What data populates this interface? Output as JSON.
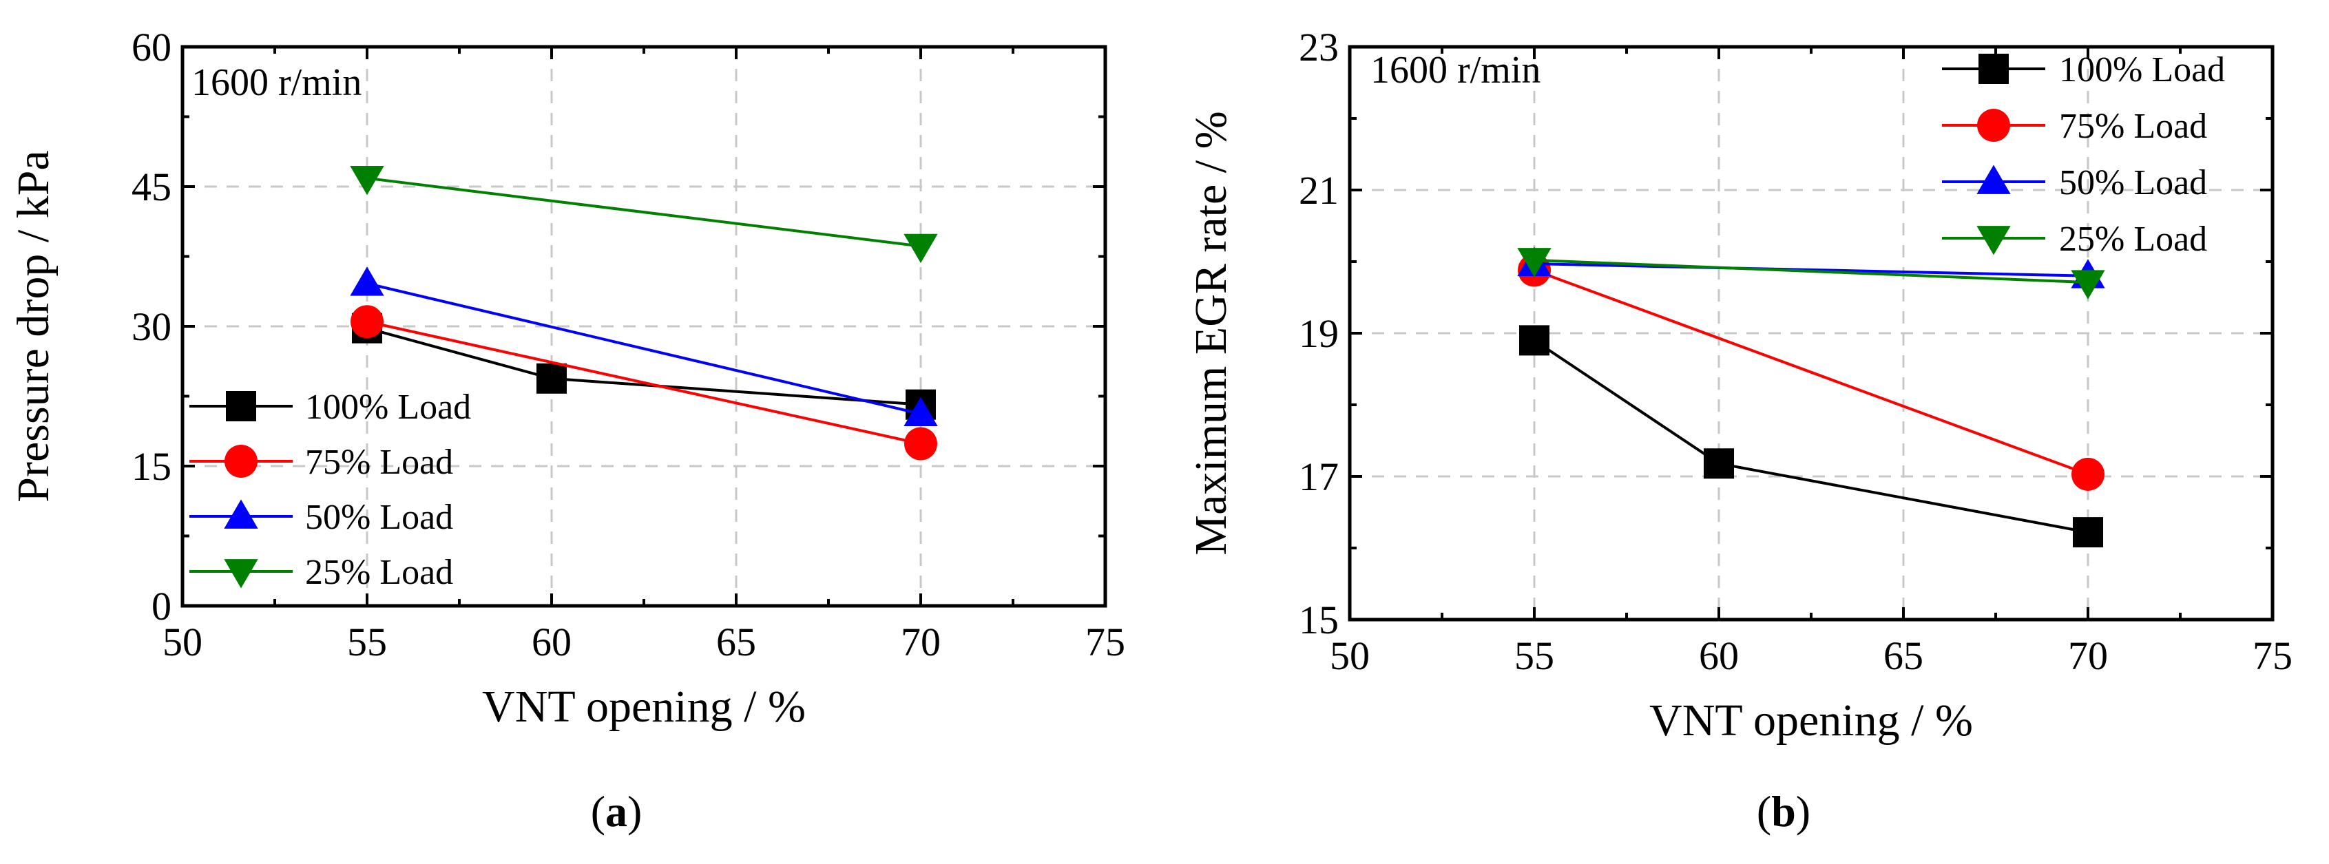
{
  "chart_data": [
    {
      "type": "line",
      "panel": "a",
      "caption_paren_open": "(",
      "caption_letter": "a",
      "caption_paren_close": ")",
      "annotation": "1600 r/min",
      "xlabel": "VNT opening / %",
      "ylabel": "Pressure drop / kPa",
      "xlim": [
        50,
        75
      ],
      "ylim": [
        0,
        60
      ],
      "xticks": [
        50,
        55,
        60,
        65,
        70,
        75
      ],
      "yticks": [
        0,
        15,
        30,
        45,
        60
      ],
      "grid": true,
      "legend_position": "lower-left",
      "series": [
        {
          "name": "100% Load",
          "color": "#000000",
          "marker": "square",
          "x": [
            55,
            60,
            70
          ],
          "y": [
            29.8,
            24.4,
            21.6
          ]
        },
        {
          "name": "75% Load",
          "color": "#ff0000",
          "marker": "circle",
          "x": [
            55,
            70
          ],
          "y": [
            30.5,
            17.4
          ]
        },
        {
          "name": "50% Load",
          "color": "#0000ff",
          "marker": "triangle-up",
          "x": [
            55,
            70
          ],
          "y": [
            34.6,
            20.6
          ]
        },
        {
          "name": "25% Load",
          "color": "#008000",
          "marker": "triangle-down",
          "x": [
            55,
            70
          ],
          "y": [
            45.9,
            38.6
          ]
        }
      ]
    },
    {
      "type": "line",
      "panel": "b",
      "caption_paren_open": "(",
      "caption_letter": "b",
      "caption_paren_close": ")",
      "annotation": "1600 r/min",
      "xlabel": "VNT opening / %",
      "ylabel": "Maximum EGR rate / %",
      "xlim": [
        50,
        75
      ],
      "ylim": [
        15,
        23
      ],
      "xticks": [
        50,
        55,
        60,
        65,
        70,
        75
      ],
      "yticks": [
        15,
        17,
        19,
        21,
        23
      ],
      "grid": true,
      "legend_position": "top-right",
      "series": [
        {
          "name": "100% Load",
          "color": "#000000",
          "marker": "square",
          "x": [
            55,
            60,
            70
          ],
          "y": [
            18.9,
            17.18,
            16.22
          ]
        },
        {
          "name": "75% Load",
          "color": "#ff0000",
          "marker": "circle",
          "x": [
            55,
            70
          ],
          "y": [
            19.88,
            17.03
          ]
        },
        {
          "name": "50% Load",
          "color": "#0000ff",
          "marker": "triangle-up",
          "x": [
            55,
            70
          ],
          "y": [
            19.97,
            19.8
          ]
        },
        {
          "name": "25% Load",
          "color": "#008000",
          "marker": "triangle-down",
          "x": [
            55,
            70
          ],
          "y": [
            20.02,
            19.71
          ]
        }
      ]
    }
  ]
}
